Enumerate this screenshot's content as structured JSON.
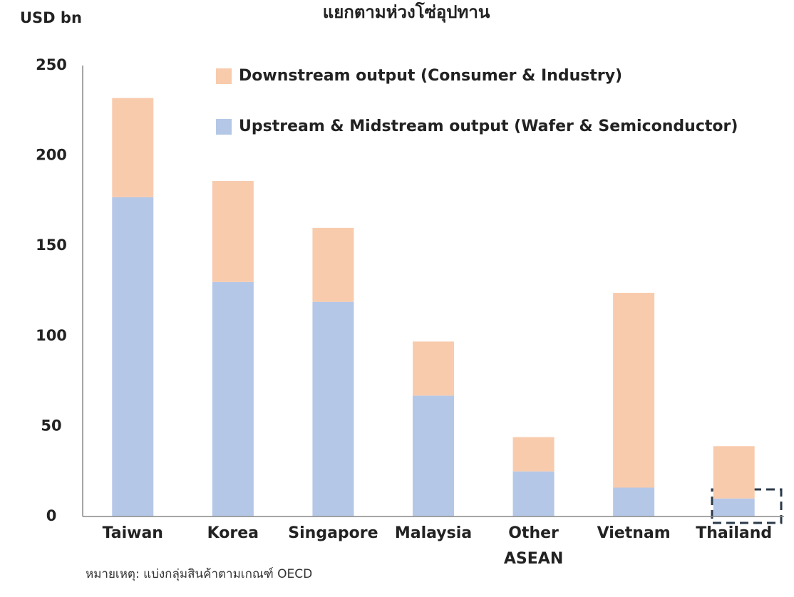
{
  "chart_data": {
    "type": "stacked_bar",
    "title": "แยกตามห่วงโซ่อุปทาน",
    "y_label": "USD bn",
    "note": "หมายเหตุ: แบ่งกลุ่มสินค้าตามเกณฑ์ OECD",
    "categories": [
      "Taiwan",
      "Korea",
      "Singapore",
      "Malaysia",
      "Other ASEAN",
      "Vietnam",
      "Thailand"
    ],
    "series": [
      {
        "name": "Upstream & Midstream output (Wafer & Semiconductor)",
        "color": "#b4c7e7",
        "values": [
          177,
          130,
          119,
          67,
          25,
          16,
          10
        ]
      },
      {
        "name": "Downstream output (Consumer & Industry)",
        "color": "#f8cbad",
        "values": [
          55,
          56,
          41,
          30,
          19,
          108,
          29
        ]
      }
    ],
    "ylim": [
      0,
      250
    ],
    "yticks": [
      0,
      50,
      100,
      150,
      200,
      250
    ],
    "grid": false
  }
}
